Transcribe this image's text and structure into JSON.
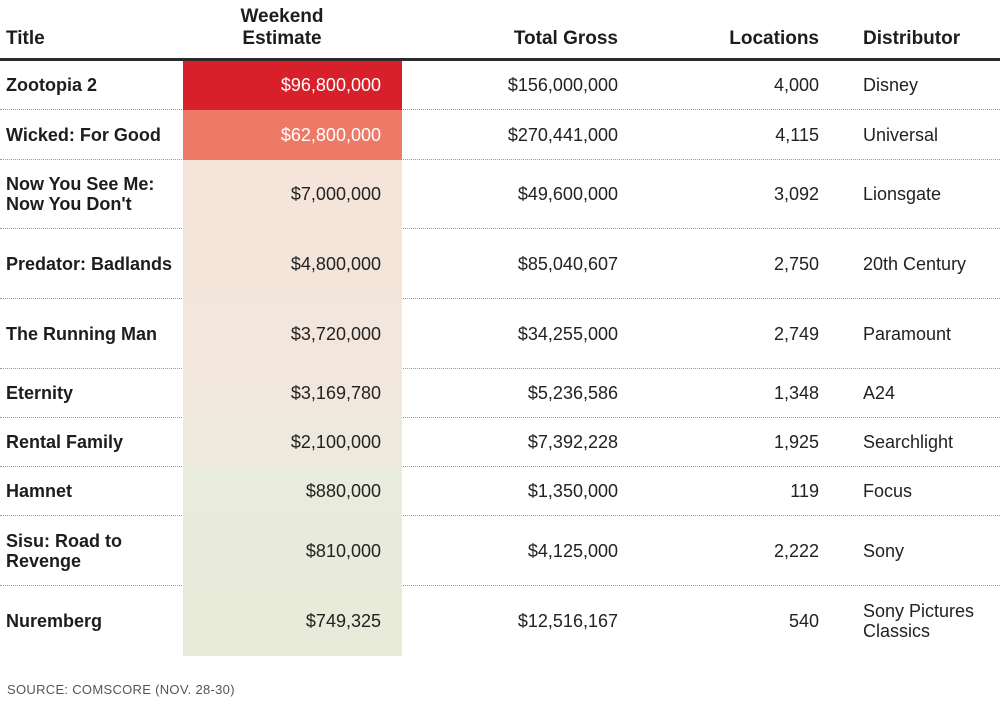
{
  "chart_data": {
    "type": "table",
    "columns": [
      "Title",
      "Weekend Estimate",
      "Total Gross",
      "Locations",
      "Distributor"
    ],
    "header": {
      "title": "Title",
      "estimate_line1": "Weekend",
      "estimate_line2": "Estimate",
      "gross": "Total Gross",
      "locations": "Locations",
      "distributor": "Distributor"
    },
    "rows": [
      {
        "title": "Zootopia 2",
        "estimate": "$96,800,000",
        "estimate_value": 96800000,
        "gross": "$156,000,000",
        "locations": "4,000",
        "distributor": "Disney",
        "fill": "#d7202a",
        "text_color": "#ffffff"
      },
      {
        "title": "Wicked: For Good",
        "estimate": "$62,800,000",
        "estimate_value": 62800000,
        "gross": "$270,441,000",
        "locations": "4,115",
        "distributor": "Universal",
        "fill": "#ec7a66",
        "text_color": "#ffffff"
      },
      {
        "title": "Now You See Me: Now You Don't",
        "estimate": "$7,000,000",
        "estimate_value": 7000000,
        "gross": "$49,600,000",
        "locations": "3,092",
        "distributor": "Lionsgate",
        "fill": "#f5e4da",
        "text_color": "#222222"
      },
      {
        "title": "Predator: Badlands",
        "estimate": "$4,800,000",
        "estimate_value": 4800000,
        "gross": "$85,040,607",
        "locations": "2,750",
        "distributor": "20th Century",
        "fill": "#f4e5db",
        "text_color": "#222222"
      },
      {
        "title": "The Running Man",
        "estimate": "$3,720,000",
        "estimate_value": 3720000,
        "gross": "$34,255,000",
        "locations": "2,749",
        "distributor": "Paramount",
        "fill": "#f3e6dc",
        "text_color": "#222222"
      },
      {
        "title": "Eternity",
        "estimate": "$3,169,780",
        "estimate_value": 3169780,
        "gross": "$5,236,586",
        "locations": "1,348",
        "distributor": "A24",
        "fill": "#f1e7dd",
        "text_color": "#222222"
      },
      {
        "title": "Rental Family",
        "estimate": "$2,100,000",
        "estimate_value": 2100000,
        "gross": "$7,392,228",
        "locations": "1,925",
        "distributor": "Searchlight",
        "fill": "#ede9dd",
        "text_color": "#222222"
      },
      {
        "title": "Hamnet",
        "estimate": "$880,000",
        "estimate_value": 880000,
        "gross": "$1,350,000",
        "locations": "119",
        "distributor": "Focus",
        "fill": "#e9ebdc",
        "text_color": "#222222"
      },
      {
        "title": "Sisu: Road to Revenge",
        "estimate": "$810,000",
        "estimate_value": 810000,
        "gross": "$4,125,000",
        "locations": "2,222",
        "distributor": "Sony",
        "fill": "#e8ebdb",
        "text_color": "#222222"
      },
      {
        "title": "Nuremberg",
        "estimate": "$749,325",
        "estimate_value": 749325,
        "gross": "$12,516,167",
        "locations": "540",
        "distributor": "Sony Pictures Classics",
        "fill": "#e8ebda",
        "text_color": "#222222"
      }
    ],
    "source": "SOURCE: COMSCORE (NOV. 28-30)"
  }
}
